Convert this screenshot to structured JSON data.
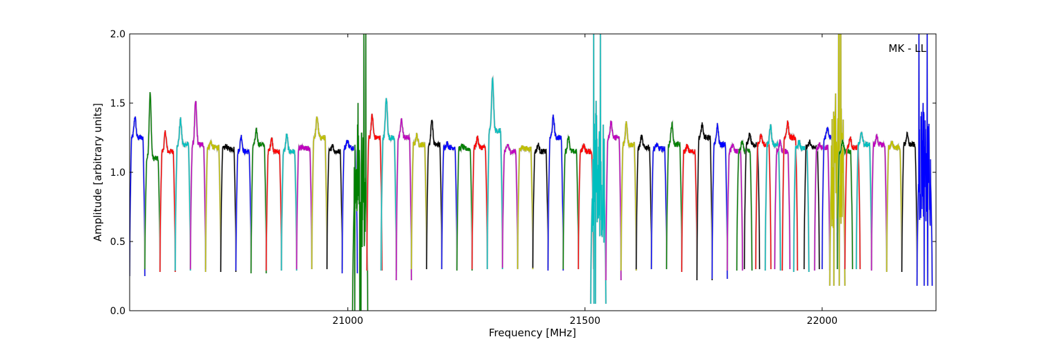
{
  "chart_data": {
    "type": "line",
    "title": "",
    "xlabel": "Frequency [MHz]",
    "ylabel": "Amplitude [arbitrary units]",
    "xlim": [
      20540,
      22240
    ],
    "ylim": [
      0.0,
      2.0
    ],
    "x_ticks": [
      21000,
      21500,
      22000
    ],
    "y_ticks": [
      0.0,
      0.5,
      1.0,
      1.5,
      2.0
    ],
    "x_tick_labels": [
      "21000",
      "21500",
      "22000"
    ],
    "y_tick_labels": [
      "0.0",
      "0.5",
      "1.0",
      "1.5",
      "2.0"
    ],
    "grid": false,
    "annotation": "MK - LL",
    "annotation_position": "top-right",
    "channel_width_mhz": 32,
    "color_cycle": [
      "#0000ff",
      "#008000",
      "#ff0000",
      "#00bfbf",
      "#bf00bf",
      "#bfbf00",
      "#000000"
    ],
    "background_series_color": "#c0c0c0",
    "series": [
      {
        "color": "#0000ff",
        "x0": 20540,
        "mid_level": 1.25,
        "peak": 1.4,
        "min": 0.25
      },
      {
        "color": "#008000",
        "x0": 20572,
        "mid_level": 1.1,
        "peak": 1.57,
        "min": 0.3
      },
      {
        "color": "#ff0000",
        "x0": 20604,
        "mid_level": 1.15,
        "peak": 1.29,
        "min": 0.28
      },
      {
        "color": "#00bfbf",
        "x0": 20636,
        "mid_level": 1.2,
        "peak": 1.38,
        "min": 0.29
      },
      {
        "color": "#bf00bf",
        "x0": 20668,
        "mid_level": 1.2,
        "peak": 1.51,
        "min": 0.3
      },
      {
        "color": "#bfbf00",
        "x0": 20700,
        "mid_level": 1.18,
        "peak": 1.22,
        "min": 0.28
      },
      {
        "color": "#000000",
        "x0": 20732,
        "mid_level": 1.17,
        "peak": 1.19,
        "min": 0.28
      },
      {
        "color": "#0000ff",
        "x0": 20764,
        "mid_level": 1.15,
        "peak": 1.26,
        "min": 0.29
      },
      {
        "color": "#008000",
        "x0": 20796,
        "mid_level": 1.2,
        "peak": 1.3,
        "min": 0.27
      },
      {
        "color": "#ff0000",
        "x0": 20828,
        "mid_level": 1.15,
        "peak": 1.25,
        "min": 0.29
      },
      {
        "color": "#00bfbf",
        "x0": 20860,
        "mid_level": 1.15,
        "peak": 1.27,
        "min": 0.29
      },
      {
        "color": "#bf00bf",
        "x0": 20892,
        "mid_level": 1.17,
        "peak": 1.18,
        "min": 0.3
      },
      {
        "color": "#bfbf00",
        "x0": 20924,
        "mid_level": 1.25,
        "peak": 1.4,
        "min": 0.3
      },
      {
        "color": "#000000",
        "x0": 20956,
        "mid_level": 1.15,
        "peak": 1.2,
        "min": 0.3
      },
      {
        "color": "#0000ff",
        "x0": 20988,
        "mid_level": 1.18,
        "peak": 1.23,
        "min": 0.27
      },
      {
        "color": "#008000",
        "x0": 21010,
        "mid_level": 0.85,
        "peak": 2.0,
        "min": 0.0,
        "noisy": true
      },
      {
        "color": "#ff0000",
        "x0": 21040,
        "mid_level": 1.25,
        "peak": 1.41,
        "min": 0.29
      },
      {
        "color": "#00bfbf",
        "x0": 21070,
        "mid_level": 1.25,
        "peak": 1.53,
        "min": 0.29
      },
      {
        "color": "#bf00bf",
        "x0": 21102,
        "mid_level": 1.25,
        "peak": 1.38,
        "min": 0.22
      },
      {
        "color": "#bfbf00",
        "x0": 21134,
        "mid_level": 1.2,
        "peak": 1.27,
        "min": 0.3
      },
      {
        "color": "#000000",
        "x0": 21166,
        "mid_level": 1.2,
        "peak": 1.38,
        "min": 0.3
      },
      {
        "color": "#0000ff",
        "x0": 21198,
        "mid_level": 1.18,
        "peak": 1.21,
        "min": 0.3
      },
      {
        "color": "#008000",
        "x0": 21230,
        "mid_level": 1.17,
        "peak": 1.19,
        "min": 0.29
      },
      {
        "color": "#ff0000",
        "x0": 21262,
        "mid_level": 1.18,
        "peak": 1.25,
        "min": 0.3
      },
      {
        "color": "#00bfbf",
        "x0": 21294,
        "mid_level": 1.3,
        "peak": 1.67,
        "min": 0.3
      },
      {
        "color": "#bf00bf",
        "x0": 21326,
        "mid_level": 1.15,
        "peak": 1.2,
        "min": 0.31
      },
      {
        "color": "#bfbf00",
        "x0": 21358,
        "mid_level": 1.17,
        "peak": 1.18,
        "min": 0.3
      },
      {
        "color": "#000000",
        "x0": 21390,
        "mid_level": 1.15,
        "peak": 1.2,
        "min": 0.31
      },
      {
        "color": "#0000ff",
        "x0": 21422,
        "mid_level": 1.25,
        "peak": 1.4,
        "min": 0.29
      },
      {
        "color": "#008000",
        "x0": 21454,
        "mid_level": 1.15,
        "peak": 1.26,
        "min": 0.3
      },
      {
        "color": "#ff0000",
        "x0": 21486,
        "mid_level": 1.15,
        "peak": 1.2,
        "min": 0.3
      },
      {
        "color": "#00bfbf",
        "x0": 21512,
        "mid_level": 0.9,
        "peak": 2.0,
        "min": 0.05,
        "noisy": true
      },
      {
        "color": "#bf00bf",
        "x0": 21544,
        "mid_level": 1.25,
        "peak": 1.36,
        "min": 0.22
      },
      {
        "color": "#bfbf00",
        "x0": 21576,
        "mid_level": 1.2,
        "peak": 1.36,
        "min": 0.29
      },
      {
        "color": "#000000",
        "x0": 21608,
        "mid_level": 1.18,
        "peak": 1.26,
        "min": 0.3
      },
      {
        "color": "#0000ff",
        "x0": 21640,
        "mid_level": 1.17,
        "peak": 1.2,
        "min": 0.3
      },
      {
        "color": "#008000",
        "x0": 21672,
        "mid_level": 1.2,
        "peak": 1.35,
        "min": 0.3
      },
      {
        "color": "#ff0000",
        "x0": 21704,
        "mid_level": 1.15,
        "peak": 1.19,
        "min": 0.28
      },
      {
        "color": "#000000",
        "x0": 21736,
        "mid_level": 1.25,
        "peak": 1.35,
        "min": 0.22
      },
      {
        "color": "#0000ff",
        "x0": 21768,
        "mid_level": 1.2,
        "peak": 1.34,
        "min": 0.23
      },
      {
        "color": "#bf00bf",
        "x0": 21800,
        "mid_level": 1.15,
        "peak": 1.2,
        "min": 0.29
      },
      {
        "color": "#008000",
        "x0": 21820,
        "mid_level": 1.15,
        "peak": 1.22,
        "min": 0.29
      },
      {
        "color": "#000000",
        "x0": 21836,
        "mid_level": 1.2,
        "peak": 1.28,
        "min": 0.3
      },
      {
        "color": "#ff0000",
        "x0": 21860,
        "mid_level": 1.2,
        "peak": 1.27,
        "min": 0.3
      },
      {
        "color": "#00bfbf",
        "x0": 21880,
        "mid_level": 1.2,
        "peak": 1.33,
        "min": 0.29
      },
      {
        "color": "#bf00bf",
        "x0": 21900,
        "mid_level": 1.15,
        "peak": 1.22,
        "min": 0.3
      },
      {
        "color": "#ff0000",
        "x0": 21916,
        "mid_level": 1.25,
        "peak": 1.36,
        "min": 0.29
      },
      {
        "color": "#00bfbf",
        "x0": 21940,
        "mid_level": 1.17,
        "peak": 1.22,
        "min": 0.28
      },
      {
        "color": "#000000",
        "x0": 21962,
        "mid_level": 1.18,
        "peak": 1.22,
        "min": 0.3
      },
      {
        "color": "#bf00bf",
        "x0": 21984,
        "mid_level": 1.18,
        "peak": 1.2,
        "min": 0.29
      },
      {
        "color": "#0000ff",
        "x0": 22000,
        "mid_level": 1.25,
        "peak": 1.31,
        "min": 0.3
      },
      {
        "color": "#bfbf00",
        "x0": 22016,
        "mid_level": 1.0,
        "peak": 2.0,
        "min": 0.18,
        "noisy": true
      },
      {
        "color": "#008000",
        "x0": 22032,
        "mid_level": 1.15,
        "peak": 1.22,
        "min": 0.3
      },
      {
        "color": "#ff0000",
        "x0": 22048,
        "mid_level": 1.18,
        "peak": 1.25,
        "min": 0.3
      },
      {
        "color": "#00bfbf",
        "x0": 22072,
        "mid_level": 1.2,
        "peak": 1.29,
        "min": 0.3
      },
      {
        "color": "#bf00bf",
        "x0": 22104,
        "mid_level": 1.2,
        "peak": 1.26,
        "min": 0.29
      },
      {
        "color": "#bfbf00",
        "x0": 22136,
        "mid_level": 1.18,
        "peak": 1.21,
        "min": 0.28
      },
      {
        "color": "#000000",
        "x0": 22168,
        "mid_level": 1.2,
        "peak": 1.27,
        "min": 0.28
      },
      {
        "color": "#0000ff",
        "x0": 22200,
        "mid_level": 1.0,
        "peak": 2.0,
        "min": 0.18,
        "noisy": true
      }
    ]
  }
}
